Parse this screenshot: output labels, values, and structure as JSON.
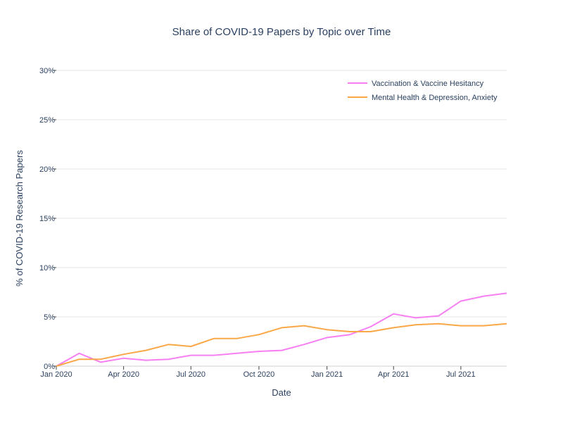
{
  "chart_data": {
    "type": "line",
    "title": "Share of COVID-19 Papers by Topic over Time",
    "xlabel": "Date",
    "ylabel": "% of COVID-19 Research Papers",
    "xlim": [
      "2020-01-01",
      "2021-09-01"
    ],
    "ylim": [
      0,
      30
    ],
    "x_ticks": [
      {
        "date": "2020-01-01",
        "label": "Jan 2020"
      },
      {
        "date": "2020-04-01",
        "label": "Apr 2020"
      },
      {
        "date": "2020-07-01",
        "label": "Jul 2020"
      },
      {
        "date": "2020-10-01",
        "label": "Oct 2020"
      },
      {
        "date": "2021-01-01",
        "label": "Jan 2021"
      },
      {
        "date": "2021-04-01",
        "label": "Apr 2021"
      },
      {
        "date": "2021-07-01",
        "label": "Jul 2021"
      }
    ],
    "y_ticks": [
      {
        "value": 0,
        "label": "0%"
      },
      {
        "value": 5,
        "label": "5%"
      },
      {
        "value": 10,
        "label": "10%"
      },
      {
        "value": 15,
        "label": "15%"
      },
      {
        "value": 20,
        "label": "20%"
      },
      {
        "value": 25,
        "label": "25%"
      },
      {
        "value": 30,
        "label": "30%"
      }
    ],
    "grid": true,
    "legend_position": "top-right",
    "x": [
      "2020-01-01",
      "2020-02-01",
      "2020-03-01",
      "2020-04-01",
      "2020-05-01",
      "2020-06-01",
      "2020-07-01",
      "2020-08-01",
      "2020-09-01",
      "2020-10-01",
      "2020-11-01",
      "2020-12-01",
      "2021-01-01",
      "2021-02-01",
      "2021-03-01",
      "2021-04-01",
      "2021-05-01",
      "2021-06-01",
      "2021-07-01",
      "2021-08-01",
      "2021-09-01"
    ],
    "series": [
      {
        "name": "Vaccination & Vaccine Hesitancy",
        "color": "#f67ff2",
        "values": [
          0.0,
          1.3,
          0.4,
          0.8,
          0.6,
          0.7,
          1.1,
          1.1,
          1.3,
          1.5,
          1.6,
          2.2,
          2.9,
          3.2,
          4.0,
          5.3,
          4.9,
          5.1,
          6.6,
          7.1,
          7.4
        ]
      },
      {
        "name": "Mental Health & Depression, Anxiety",
        "color": "#faa748",
        "values": [
          0.0,
          0.7,
          0.7,
          1.2,
          1.6,
          2.2,
          2.0,
          2.8,
          2.8,
          3.2,
          3.9,
          4.1,
          3.7,
          3.5,
          3.5,
          3.9,
          4.2,
          4.3,
          4.1,
          4.1,
          4.3
        ]
      }
    ]
  }
}
